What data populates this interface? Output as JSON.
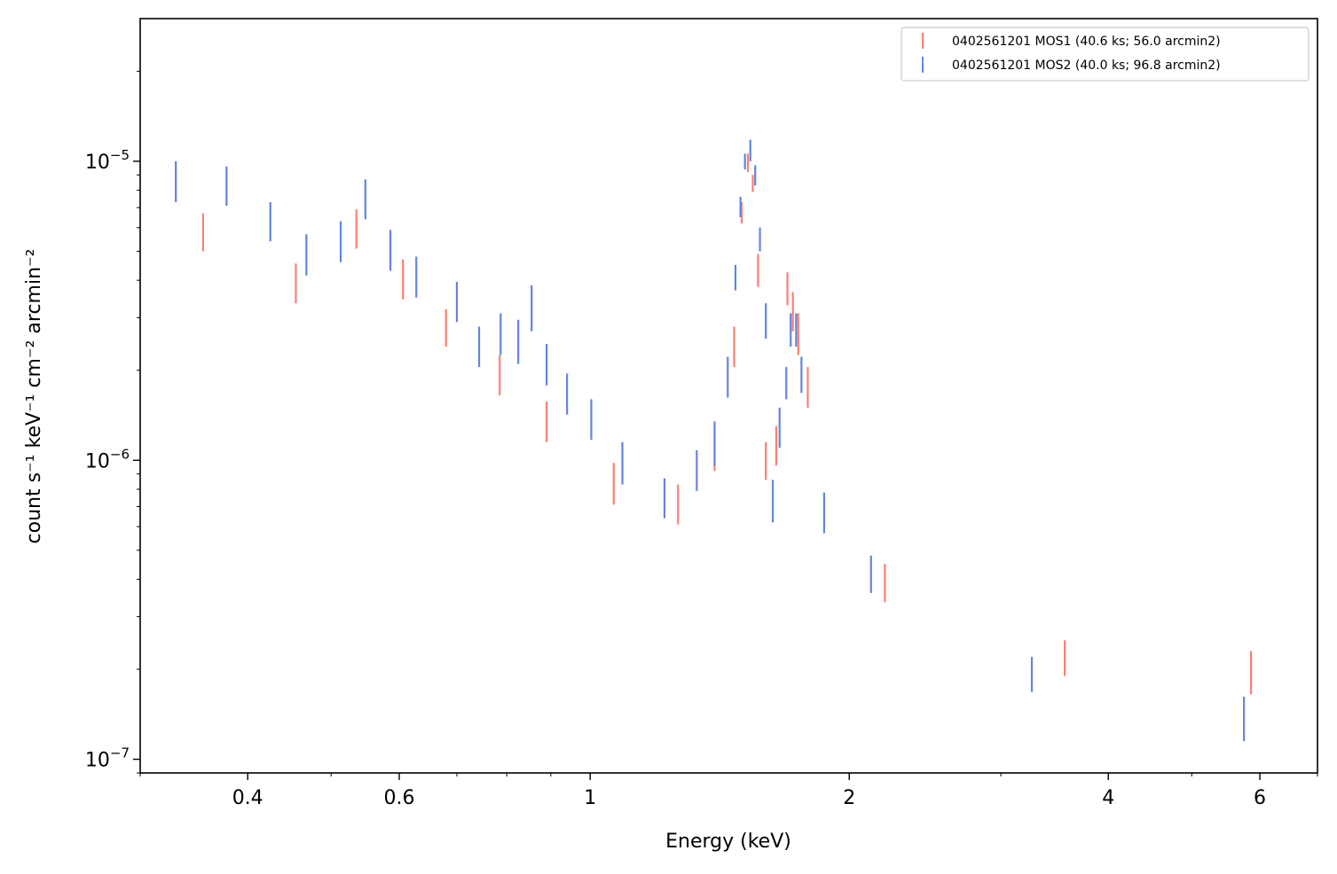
{
  "chart_data": {
    "type": "scatter",
    "title": "",
    "xlabel": "Energy (keV)",
    "ylabel": "count s⁻¹ keV⁻¹ cm⁻² arcmin⁻²",
    "x_scale": "log",
    "y_scale": "log",
    "xlim": [
      0.3,
      7.0
    ],
    "ylim": [
      9e-08,
      3e-05
    ],
    "grid": false,
    "legend_position": "top-right",
    "x_ticks": [
      {
        "value": 0.4,
        "label": "0.4"
      },
      {
        "value": 0.6,
        "label": "0.6"
      },
      {
        "value": 1,
        "label": "1"
      },
      {
        "value": 2,
        "label": "2"
      },
      {
        "value": 4,
        "label": "4"
      },
      {
        "value": 6,
        "label": "6"
      }
    ],
    "y_ticks": [
      {
        "value": 1e-05,
        "base": "10",
        "exp": "−5"
      },
      {
        "value": 1e-06,
        "base": "10",
        "exp": "−6"
      },
      {
        "value": 1e-07,
        "base": "10",
        "exp": "−7"
      }
    ],
    "series": [
      {
        "name": "0402561201 MOS1 (40.6 ks; 56.0 arcmin2)",
        "color": "#fa8072",
        "points": [
          {
            "x": 0.355,
            "ylo": 5e-06,
            "yhi": 6.7e-06
          },
          {
            "x": 0.455,
            "ylo": 3.35e-06,
            "yhi": 4.55e-06
          },
          {
            "x": 0.535,
            "ylo": 5.1e-06,
            "yhi": 6.9e-06
          },
          {
            "x": 0.606,
            "ylo": 3.45e-06,
            "yhi": 4.7e-06
          },
          {
            "x": 0.68,
            "ylo": 2.4e-06,
            "yhi": 3.2e-06
          },
          {
            "x": 0.785,
            "ylo": 1.65e-06,
            "yhi": 2.25e-06
          },
          {
            "x": 0.89,
            "ylo": 1.15e-06,
            "yhi": 1.57e-06
          },
          {
            "x": 1.065,
            "ylo": 7.1e-07,
            "yhi": 9.8e-07
          },
          {
            "x": 1.265,
            "ylo": 6.1e-07,
            "yhi": 8.3e-07
          },
          {
            "x": 1.395,
            "ylo": 9.2e-07,
            "yhi": 1.25e-06
          },
          {
            "x": 1.47,
            "ylo": 2.05e-06,
            "yhi": 2.8e-06
          },
          {
            "x": 1.5,
            "ylo": 6.2e-06,
            "yhi": 7.3e-06
          },
          {
            "x": 1.525,
            "ylo": 9.2e-06,
            "yhi": 1.06e-05
          },
          {
            "x": 1.545,
            "ylo": 7.9e-06,
            "yhi": 9e-06
          },
          {
            "x": 1.567,
            "ylo": 3.8e-06,
            "yhi": 4.9e-06
          },
          {
            "x": 1.6,
            "ylo": 8.6e-07,
            "yhi": 1.15e-06
          },
          {
            "x": 1.645,
            "ylo": 9.6e-07,
            "yhi": 1.3e-06
          },
          {
            "x": 1.695,
            "ylo": 3.3e-06,
            "yhi": 4.25e-06
          },
          {
            "x": 1.72,
            "ylo": 2.7e-06,
            "yhi": 3.65e-06
          },
          {
            "x": 1.745,
            "ylo": 2.25e-06,
            "yhi": 3.1e-06
          },
          {
            "x": 1.79,
            "ylo": 1.5e-06,
            "yhi": 2.05e-06
          },
          {
            "x": 2.2,
            "ylo": 3.35e-07,
            "yhi": 4.5e-07
          },
          {
            "x": 3.56,
            "ylo": 1.9e-07,
            "yhi": 2.5e-07
          },
          {
            "x": 5.86,
            "ylo": 1.65e-07,
            "yhi": 2.3e-07
          }
        ]
      },
      {
        "name": "0402561201 MOS2 (40.0 ks; 96.8 arcmin2)",
        "color": "#6185de",
        "points": [
          {
            "x": 0.33,
            "ylo": 7.3e-06,
            "yhi": 1e-05
          },
          {
            "x": 0.378,
            "ylo": 7.1e-06,
            "yhi": 9.6e-06
          },
          {
            "x": 0.425,
            "ylo": 5.4e-06,
            "yhi": 7.3e-06
          },
          {
            "x": 0.468,
            "ylo": 4.15e-06,
            "yhi": 5.7e-06
          },
          {
            "x": 0.513,
            "ylo": 4.6e-06,
            "yhi": 6.3e-06
          },
          {
            "x": 0.548,
            "ylo": 6.4e-06,
            "yhi": 8.7e-06
          },
          {
            "x": 0.586,
            "ylo": 4.3e-06,
            "yhi": 5.9e-06
          },
          {
            "x": 0.628,
            "ylo": 3.5e-06,
            "yhi": 4.8e-06
          },
          {
            "x": 0.7,
            "ylo": 2.9e-06,
            "yhi": 3.95e-06
          },
          {
            "x": 0.743,
            "ylo": 2.05e-06,
            "yhi": 2.8e-06
          },
          {
            "x": 0.787,
            "ylo": 2.25e-06,
            "yhi": 3.1e-06
          },
          {
            "x": 0.825,
            "ylo": 2.1e-06,
            "yhi": 2.95e-06
          },
          {
            "x": 0.855,
            "ylo": 2.7e-06,
            "yhi": 3.85e-06
          },
          {
            "x": 0.89,
            "ylo": 1.78e-06,
            "yhi": 2.45e-06
          },
          {
            "x": 0.94,
            "ylo": 1.42e-06,
            "yhi": 1.95e-06
          },
          {
            "x": 1.003,
            "ylo": 1.17e-06,
            "yhi": 1.6e-06
          },
          {
            "x": 1.09,
            "ylo": 8.3e-07,
            "yhi": 1.15e-06
          },
          {
            "x": 1.22,
            "ylo": 6.4e-07,
            "yhi": 8.7e-07
          },
          {
            "x": 1.33,
            "ylo": 7.9e-07,
            "yhi": 1.08e-06
          },
          {
            "x": 1.395,
            "ylo": 9.6e-07,
            "yhi": 1.35e-06
          },
          {
            "x": 1.445,
            "ylo": 1.62e-06,
            "yhi": 2.22e-06
          },
          {
            "x": 1.475,
            "ylo": 3.7e-06,
            "yhi": 4.5e-06
          },
          {
            "x": 1.495,
            "ylo": 6.5e-06,
            "yhi": 7.6e-06
          },
          {
            "x": 1.513,
            "ylo": 9.4e-06,
            "yhi": 1.06e-05
          },
          {
            "x": 1.535,
            "ylo": 1e-05,
            "yhi": 1.18e-05
          },
          {
            "x": 1.555,
            "ylo": 8.3e-06,
            "yhi": 9.7e-06
          },
          {
            "x": 1.575,
            "ylo": 5e-06,
            "yhi": 6e-06
          },
          {
            "x": 1.6,
            "ylo": 2.55e-06,
            "yhi": 3.35e-06
          },
          {
            "x": 1.63,
            "ylo": 6.2e-07,
            "yhi": 8.6e-07
          },
          {
            "x": 1.66,
            "ylo": 1.1e-06,
            "yhi": 1.5e-06
          },
          {
            "x": 1.69,
            "ylo": 1.6e-06,
            "yhi": 2.05e-06
          },
          {
            "x": 1.71,
            "ylo": 2.4e-06,
            "yhi": 3.1e-06
          },
          {
            "x": 1.735,
            "ylo": 2.4e-06,
            "yhi": 3.1e-06
          },
          {
            "x": 1.76,
            "ylo": 1.68e-06,
            "yhi": 2.22e-06
          },
          {
            "x": 1.87,
            "ylo": 5.7e-07,
            "yhi": 7.8e-07
          },
          {
            "x": 2.12,
            "ylo": 3.6e-07,
            "yhi": 4.8e-07
          },
          {
            "x": 3.26,
            "ylo": 1.68e-07,
            "yhi": 2.2e-07
          },
          {
            "x": 5.75,
            "ylo": 1.15e-07,
            "yhi": 1.62e-07
          }
        ]
      }
    ]
  }
}
